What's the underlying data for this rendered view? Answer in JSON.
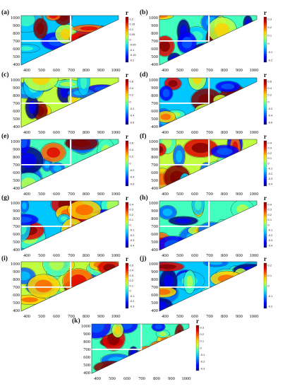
{
  "figure": {
    "colorbar_title": "r",
    "y_tick_labels": [
      "1000",
      "900",
      "800",
      "700",
      "600",
      "500",
      "400"
    ],
    "x_tick_labels": [
      "400",
      "500",
      "600",
      "700",
      "800",
      "900",
      "1000"
    ]
  },
  "chart_data": [
    {
      "type": "heatmap",
      "panel": "(a)",
      "x_ticks": [
        400,
        500,
        600,
        700,
        800,
        900,
        1000
      ],
      "y_ticks": [
        400,
        500,
        600,
        700,
        800,
        900,
        1000
      ],
      "colorbar_ticks": [
        "0.2",
        "0.15",
        "0.1",
        "0.05",
        "0",
        "-0.05",
        "-0.1",
        "-0.15",
        "-0.2"
      ],
      "colors": {
        "low": "#1a1adf",
        "high": "#9b0000"
      }
    },
    {
      "type": "heatmap",
      "panel": "(b)",
      "x_ticks": [
        400,
        500,
        600,
        700,
        800,
        900,
        1000
      ],
      "y_ticks": [
        400,
        500,
        600,
        700,
        800,
        900,
        1000
      ],
      "colorbar_ticks": [
        "0.3",
        "0.2",
        "0.1",
        "0",
        "-0.1",
        "-0.2"
      ]
    },
    {
      "type": "heatmap",
      "panel": "(c)",
      "x_ticks": [
        400,
        500,
        600,
        700,
        800,
        900,
        1000
      ],
      "y_ticks": [
        400,
        500,
        600,
        700,
        800,
        900,
        1000
      ],
      "colorbar_ticks": [
        "0.6",
        "0.4",
        "0.2",
        "0",
        "-0.2",
        "-0.4",
        "-0.6"
      ]
    },
    {
      "type": "heatmap",
      "panel": "(d)",
      "x_ticks": [
        400,
        500,
        600,
        700,
        800,
        900,
        1000
      ],
      "y_ticks": [
        400,
        500,
        600,
        700,
        800,
        900,
        1000
      ],
      "colorbar_ticks": [
        "0.6",
        "0.4",
        "0.2",
        "0",
        "-0.2",
        "-0.4",
        "-0.6"
      ]
    },
    {
      "type": "heatmap",
      "panel": "(e)",
      "x_ticks": [
        400,
        500,
        600,
        700,
        800,
        900,
        1000
      ],
      "y_ticks": [
        400,
        500,
        600,
        700,
        800,
        900,
        1000
      ],
      "colorbar_ticks": [
        "0.6",
        "0.4",
        "0.2",
        "0",
        "-0.2",
        "-0.4",
        "-0.6"
      ]
    },
    {
      "type": "heatmap",
      "panel": "(f)",
      "x_ticks": [
        400,
        500,
        600,
        700,
        800,
        900,
        1000
      ],
      "y_ticks": [
        400,
        500,
        600,
        700,
        800,
        900,
        1000
      ],
      "colorbar_ticks": [
        "0.4",
        "0.3",
        "0.2",
        "0.1",
        "0",
        "-0.1",
        "-0.2",
        "-0.3",
        "-0.4"
      ]
    },
    {
      "type": "heatmap",
      "panel": "(g)",
      "x_ticks": [
        400,
        500,
        600,
        700,
        800,
        900,
        1000
      ],
      "y_ticks": [
        400,
        500,
        600,
        700,
        800,
        900,
        1000
      ],
      "colorbar_ticks": [
        "0.4",
        "0.3",
        "0.2",
        "0.1",
        "0",
        "-0.1",
        "-0.2",
        "-0.3",
        "-0.4"
      ]
    },
    {
      "type": "heatmap",
      "panel": "(h)",
      "x_ticks": [
        400,
        500,
        600,
        700,
        800,
        900,
        1000
      ],
      "y_ticks": [
        400,
        500,
        600,
        700,
        800,
        900,
        1000
      ],
      "colorbar_ticks": [
        "0.4",
        "0.3",
        "0.2",
        "0.1",
        "0",
        "-0.1",
        "-0.2",
        "-0.3",
        "-0.4"
      ]
    },
    {
      "type": "heatmap",
      "panel": "(i)",
      "x_ticks": [
        400,
        500,
        600,
        700,
        800,
        900,
        1000
      ],
      "y_ticks": [
        400,
        500,
        600,
        700,
        800,
        900,
        1000
      ],
      "colorbar_ticks": [
        "0.5",
        "0.4",
        "0.3",
        "0.2",
        "0.1",
        "0",
        "-0.1",
        "-0.2",
        "-0.3"
      ]
    },
    {
      "type": "heatmap",
      "panel": "(j)",
      "x_ticks": [
        400,
        500,
        600,
        700,
        800,
        900,
        1000
      ],
      "y_ticks": [
        400,
        500,
        600,
        700,
        800,
        900,
        1000
      ],
      "colorbar_ticks": [
        "0.2",
        "0.1",
        "0",
        "-0.1",
        "-0.2"
      ]
    },
    {
      "type": "heatmap",
      "panel": "(k)",
      "x_ticks": [
        400,
        500,
        600,
        700,
        800,
        900,
        1000
      ],
      "y_ticks": [
        400,
        500,
        600,
        700,
        800,
        900,
        1000
      ],
      "colorbar_ticks": [
        "0.3",
        "0.2",
        "0.1",
        "0",
        "-0.1",
        "-0.2",
        "-0.3"
      ]
    }
  ]
}
